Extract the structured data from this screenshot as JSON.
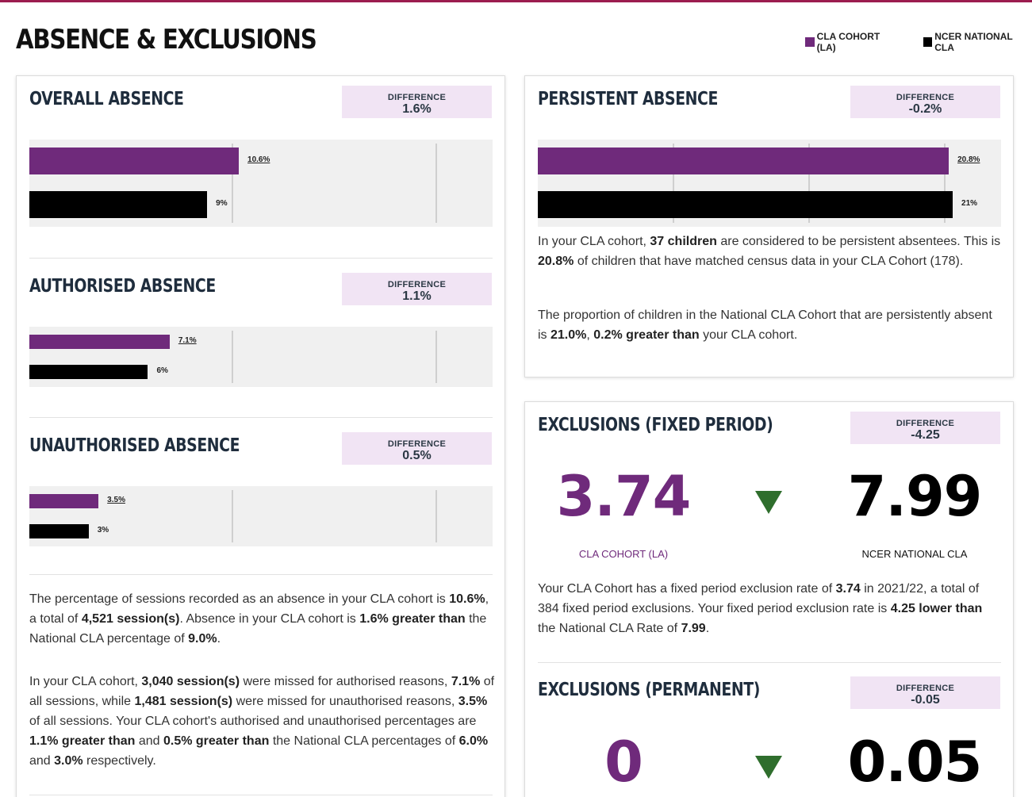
{
  "page": {
    "title": "ABSENCE & EXCLUSIONS"
  },
  "legend": [
    {
      "label": "CLA COHORT (LA)",
      "color": "#6f2a7b"
    },
    {
      "label": "NCER NATIONAL CLA",
      "color": "#000000"
    }
  ],
  "colors": {
    "cohort": "#6f2a7b",
    "national": "#000000",
    "diff_bg": "#f1e4f4",
    "down_arrow": "#2f6e2d"
  },
  "scale_max_percent": 20,
  "overall": {
    "title": "OVERALL ABSENCE",
    "diff_label": "DIFFERENCE",
    "diff_value": "1.6%",
    "cohort": 10.6,
    "cohort_label": "10.6%",
    "national": 9,
    "national_label": "9%"
  },
  "authorised": {
    "title": "AUTHORISED ABSENCE",
    "diff_label": "DIFFERENCE",
    "diff_value": "1.1%",
    "cohort": 7.1,
    "cohort_label": "7.1%",
    "national": 6,
    "national_label": "6%"
  },
  "unauthorised": {
    "title": "UNAUTHORISED ABSENCE",
    "diff_label": "DIFFERENCE",
    "diff_value": "0.5%",
    "cohort": 3.5,
    "cohort_label": "3.5%",
    "national": 3,
    "national_label": "3%"
  },
  "absence_text": {
    "p1": [
      {
        "t": "The percentage of sessions recorded as an absence in your CLA cohort is "
      },
      {
        "t": "10.6%",
        "b": true
      },
      {
        "t": ", a total of "
      },
      {
        "t": "4,521 session(s)",
        "b": true
      },
      {
        "t": ". Absence in your CLA cohort is "
      },
      {
        "t": "1.6% greater than",
        "b": true
      },
      {
        "t": " the National CLA percentage of "
      },
      {
        "t": "9.0%",
        "b": true
      },
      {
        "t": "."
      }
    ],
    "p2": [
      {
        "t": "In your CLA cohort, "
      },
      {
        "t": "3,040 session(s)",
        "b": true
      },
      {
        "t": " were missed for authorised reasons, "
      },
      {
        "t": "7.1%",
        "b": true
      },
      {
        "t": " of all sessions, while "
      },
      {
        "t": "1,481 session(s)",
        "b": true
      },
      {
        "t": " were missed for unauthorised reasons, "
      },
      {
        "t": "3.5%",
        "b": true
      },
      {
        "t": " of all sessions. Your CLA cohort's authorised and unauthorised percentages are "
      },
      {
        "t": "1.1% greater than",
        "b": true
      },
      {
        "t": " and "
      },
      {
        "t": "0.5% greater than",
        "b": true
      },
      {
        "t": " the National CLA percentages of "
      },
      {
        "t": "6.0%",
        "b": true
      },
      {
        "t": " and "
      },
      {
        "t": "3.0%",
        "b": true
      },
      {
        "t": " respectively."
      }
    ]
  },
  "persistent": {
    "title": "PERSISTENT ABSENCE",
    "diff_label": "DIFFERENCE",
    "diff_value": "-0.2%",
    "cohort": 20.8,
    "cohort_label": "20.8%",
    "national": 21,
    "national_label": "21%",
    "p1": [
      {
        "t": "In your CLA cohort, "
      },
      {
        "t": "37 children",
        "b": true
      },
      {
        "t": " are considered to be persistent absentees. This is "
      },
      {
        "t": "20.8%",
        "b": true
      },
      {
        "t": " of children that have matched census data in your CLA Cohort (178)."
      }
    ],
    "p2": [
      {
        "t": "The proportion of children in the National CLA Cohort that are persistently absent is "
      },
      {
        "t": "21.0%",
        "b": true
      },
      {
        "t": ", "
      },
      {
        "t": "0.2% greater than",
        "b": true
      },
      {
        "t": " your CLA cohort."
      }
    ]
  },
  "fixed": {
    "title": "EXCLUSIONS (FIXED PERIOD)",
    "diff_label": "DIFFERENCE",
    "diff_value": "-4.25",
    "cohort_value": "3.74",
    "cohort_caption": "CLA COHORT (LA)",
    "national_value": "7.99",
    "national_caption": "NCER NATIONAL CLA",
    "text": [
      {
        "t": "Your CLA Cohort has a fixed period exclusion rate of "
      },
      {
        "t": "3.74",
        "b": true
      },
      {
        "t": " in 2021/22, a total of 384 fixed period exclusions. Your fixed period exclusion rate is "
      },
      {
        "t": "4.25 lower than",
        "b": true
      },
      {
        "t": " the National CLA Rate of "
      },
      {
        "t": "7.99",
        "b": true
      },
      {
        "t": "."
      }
    ]
  },
  "permanent": {
    "title": "EXCLUSIONS (PERMANENT)",
    "diff_label": "DIFFERENCE",
    "diff_value": "-0.05",
    "cohort_value": "0",
    "national_value": "0.05"
  }
}
